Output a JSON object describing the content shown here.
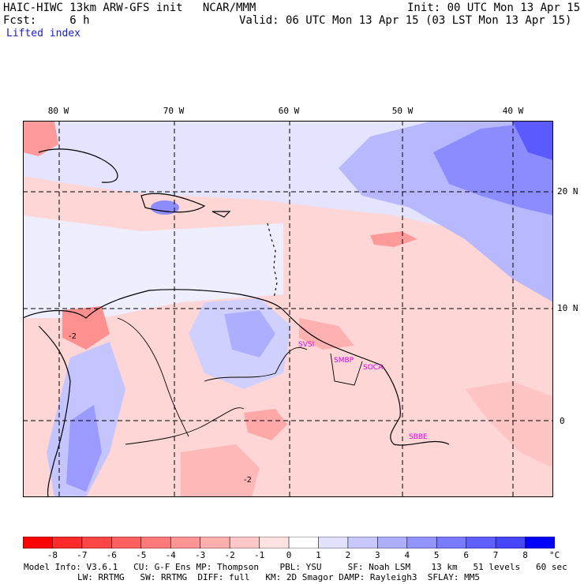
{
  "header": {
    "model_line": "HAIC-HIWC 13km ARW-GFS init   NCAR/MMM",
    "fcst_line": "Fcst:     6 h",
    "init_line": "Init: 00 UTC Mon 13 Apr 15",
    "valid_line": "Valid: 06 UTC Mon 13 Apr 15 (03 LST Mon 13 Apr 15)",
    "field": "Lifted index"
  },
  "map": {
    "lon_labels": [
      "80 W",
      "70 W",
      "60 W",
      "50 W",
      "40 W"
    ],
    "lat_labels": [
      "20 N",
      "10 N",
      "0"
    ],
    "stations": [
      "SVSI",
      "SMBP",
      "SOCA",
      "SBBE"
    ],
    "contour_labels": [
      "-2",
      "-2"
    ]
  },
  "colorbar": {
    "ticks": [
      "-8",
      "-7",
      "-6",
      "-5",
      "-4",
      "-3",
      "-2",
      "-1",
      "0",
      "1",
      "2",
      "3",
      "4",
      "5",
      "6",
      "7",
      "8"
    ],
    "unit": "°C",
    "colors": [
      "#ff0000",
      "#ff2a2a",
      "#ff4646",
      "#ff6060",
      "#ff7a7a",
      "#ff9494",
      "#ffaeae",
      "#ffc8c8",
      "#ffe2e2",
      "#ffffff",
      "#e2e2ff",
      "#c8c8ff",
      "#aeaeff",
      "#9494ff",
      "#7a7aff",
      "#6060ff",
      "#4646ff",
      "#0000ff"
    ]
  },
  "footer": {
    "line1": "Model Info: V3.6.1   CU: G-F Ens MP: Thompson    PBL: YSU     SF: Noah LSM    13 km   51 levels   60 sec",
    "line2": "LW: RRTMG   SW: RRTMG  DIFF: full   KM: 2D Smagor DAMP: Rayleigh3  SFLAY: MM5"
  }
}
